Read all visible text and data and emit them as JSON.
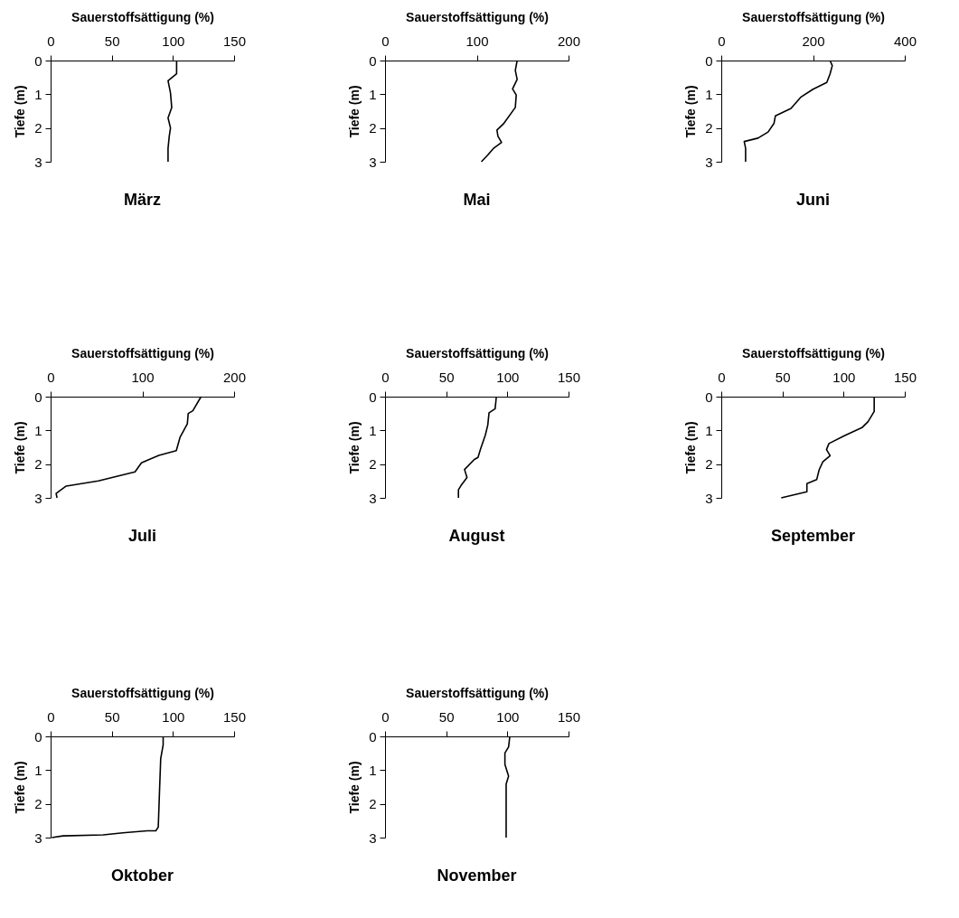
{
  "chart_data": [
    {
      "type": "line",
      "title": "März",
      "xlabel": "Sauerstoffsättigung (%)",
      "ylabel": "Tiefe (m)",
      "xlim": [
        0,
        150
      ],
      "xticks": [
        0,
        50,
        100,
        150
      ],
      "ylim": [
        3,
        0
      ],
      "yticks": [
        0,
        1,
        2,
        3
      ],
      "series": [
        {
          "color": "#000000",
          "x": [
            103,
            103,
            96,
            98,
            99,
            96,
            98,
            97,
            96,
            96
          ],
          "values": [
            0,
            0.39,
            0.6,
            0.96,
            1.39,
            1.7,
            2.0,
            2.24,
            2.6,
            3
          ]
        }
      ]
    },
    {
      "type": "line",
      "title": "Mai",
      "xlabel": "Sauerstoffsättigung (%)",
      "ylabel": "Tiefe (m)",
      "xlim": [
        0,
        200
      ],
      "xticks": [
        0,
        100,
        200
      ],
      "ylim": [
        3,
        0
      ],
      "yticks": [
        0,
        1,
        2,
        3
      ],
      "series": [
        {
          "color": "#000000",
          "x": [
            144,
            142,
            144,
            139,
            143,
            142,
            129,
            122,
            123,
            127,
            118,
            112,
            105
          ],
          "values": [
            0,
            0.29,
            0.56,
            0.84,
            1.02,
            1.39,
            1.88,
            2.06,
            2.24,
            2.43,
            2.61,
            2.8,
            3
          ]
        }
      ]
    },
    {
      "type": "line",
      "title": "Juni",
      "xlabel": "Sauerstoffsättigung (%)",
      "ylabel": "Tiefe (m)",
      "xlim": [
        0,
        400
      ],
      "xticks": [
        0,
        200,
        400
      ],
      "ylim": [
        3,
        0
      ],
      "yticks": [
        0,
        1,
        2,
        3
      ],
      "series": [
        {
          "color": "#000000",
          "x": [
            237,
            242,
            237,
            230,
            200,
            173,
            152,
            118,
            115,
            102,
            80,
            50,
            53,
            53
          ],
          "values": [
            0,
            0.15,
            0.4,
            0.65,
            0.85,
            1.09,
            1.42,
            1.64,
            1.86,
            2.12,
            2.3,
            2.4,
            2.6,
            3
          ]
        }
      ]
    },
    {
      "type": "line",
      "title": "Juli",
      "xlabel": "Sauerstoffsättigung (%)",
      "ylabel": "Tiefe (m)",
      "xlim": [
        0,
        200
      ],
      "xticks": [
        0,
        100,
        200
      ],
      "ylim": [
        3,
        0
      ],
      "yticks": [
        0,
        1,
        2,
        3
      ],
      "series": [
        {
          "color": "#000000",
          "x": [
            164,
            155,
            150,
            149,
            141,
            137,
            118,
            99,
            92,
            52,
            17,
            6,
            7
          ],
          "values": [
            0,
            0.42,
            0.5,
            0.81,
            1.21,
            1.6,
            1.74,
            1.96,
            2.23,
            2.5,
            2.65,
            2.87,
            3
          ]
        }
      ]
    },
    {
      "type": "line",
      "title": "August",
      "xlabel": "Sauerstoffsättigung (%)",
      "ylabel": "Tiefe (m)",
      "xlim": [
        0,
        150
      ],
      "xticks": [
        0,
        50,
        100,
        150
      ],
      "ylim": [
        3,
        0
      ],
      "yticks": [
        0,
        1,
        2,
        3
      ],
      "series": [
        {
          "color": "#000000",
          "x": [
            91,
            90,
            85,
            84,
            82,
            78,
            76,
            73,
            65,
            67,
            62,
            60,
            60
          ],
          "values": [
            0,
            0.36,
            0.48,
            0.84,
            1.14,
            1.56,
            1.8,
            1.86,
            2.16,
            2.4,
            2.64,
            2.76,
            3
          ]
        }
      ]
    },
    {
      "type": "line",
      "title": "September",
      "xlabel": "Sauerstoffsättigung (%)",
      "ylabel": "Tiefe (m)",
      "xlim": [
        0,
        150
      ],
      "xticks": [
        0,
        50,
        100,
        150
      ],
      "ylim": [
        3,
        0
      ],
      "yticks": [
        0,
        1,
        2,
        3
      ],
      "series": [
        {
          "color": "#000000",
          "x": [
            125,
            125,
            120,
            115,
            101,
            88,
            86,
            89,
            83,
            80,
            78,
            70,
            70,
            49
          ],
          "values": [
            0,
            0.44,
            0.74,
            0.92,
            1.15,
            1.39,
            1.57,
            1.75,
            1.93,
            2.17,
            2.46,
            2.58,
            2.82,
            3
          ]
        }
      ]
    },
    {
      "type": "line",
      "title": "Oktober",
      "xlabel": "Sauerstoffsättigung (%)",
      "ylabel": "Tiefe (m)",
      "xlim": [
        0,
        150
      ],
      "xticks": [
        0,
        50,
        100,
        150
      ],
      "ylim": [
        3,
        0
      ],
      "yticks": [
        0,
        1,
        2,
        3
      ],
      "series": [
        {
          "color": "#000000",
          "x": [
            92,
            92,
            90,
            89,
            88,
            86,
            79,
            59,
            43,
            10,
            1
          ],
          "values": [
            0,
            0.25,
            0.66,
            1.65,
            2.69,
            2.8,
            2.8,
            2.86,
            2.92,
            2.95,
            3
          ]
        }
      ]
    },
    {
      "type": "line",
      "title": "November",
      "xlabel": "Sauerstoffsättigung (%)",
      "ylabel": "Tiefe (m)",
      "xlim": [
        0,
        150
      ],
      "xticks": [
        0,
        50,
        100,
        150
      ],
      "ylim": [
        3,
        0
      ],
      "yticks": [
        0,
        1,
        2,
        3
      ],
      "series": [
        {
          "color": "#000000",
          "x": [
            102,
            101,
            98,
            98,
            101,
            99,
            99
          ],
          "values": [
            0,
            0.31,
            0.49,
            0.83,
            1.18,
            1.41,
            3
          ]
        }
      ]
    }
  ]
}
